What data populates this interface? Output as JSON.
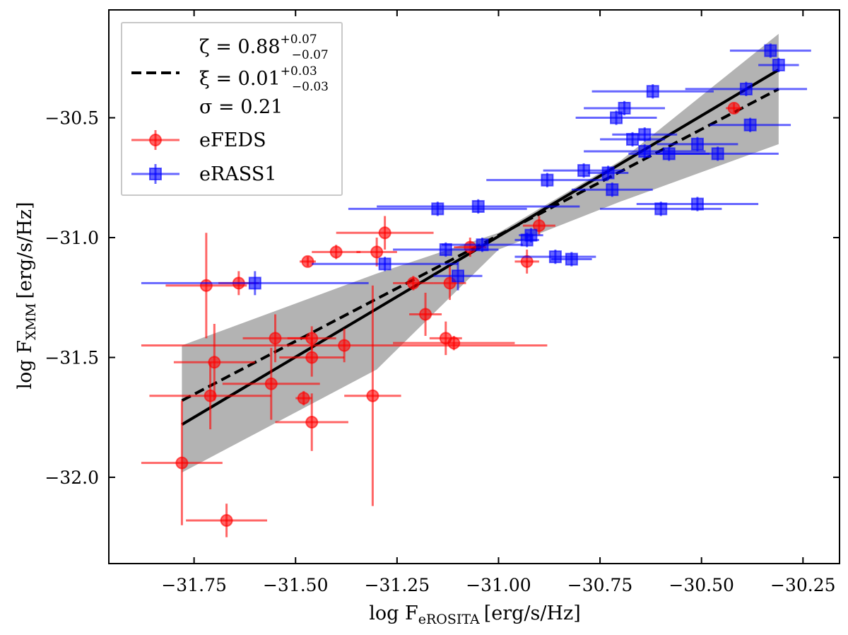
{
  "chart_data": {
    "type": "scatter",
    "xlabel": {
      "main": "log F",
      "sub": "eROSITA",
      "unit": "[erg/s/Hz]"
    },
    "ylabel": {
      "main": "log F",
      "sub": "XMM",
      "unit": "[erg/s/Hz]"
    },
    "xlim": [
      -31.96,
      -30.16
    ],
    "ylim": [
      -32.36,
      -30.05
    ],
    "xticks": [
      -31.75,
      -31.5,
      -31.25,
      -31.0,
      -30.75,
      -30.5,
      -30.25
    ],
    "yticks": [
      -32.0,
      -31.5,
      -31.0,
      -30.5
    ],
    "xtick_labels": [
      "−31.75",
      "−31.50",
      "−31.25",
      "−31.00",
      "−30.75",
      "−30.50",
      "−30.25"
    ],
    "ytick_labels": [
      "−32.0",
      "−31.5",
      "−31.0",
      "−30.5"
    ],
    "legend": {
      "placement": "top-left",
      "fit_label": {
        "zeta": "ζ = 0.88",
        "zeta_err": [
          "+0.07",
          "−0.07"
        ],
        "xi": "ξ = 0.01",
        "xi_err": [
          "+0.03",
          "−0.03"
        ],
        "sigma": "σ = 0.21"
      },
      "entries": [
        "eFEDS",
        "eRASS1"
      ]
    },
    "fit": {
      "solid": {
        "x": [
          -31.78,
          -30.31
        ],
        "y": [
          -31.78,
          -30.3
        ]
      },
      "dashed": {
        "x": [
          -31.78,
          -30.31
        ],
        "y": [
          -31.68,
          -30.38
        ]
      },
      "band": {
        "x": [
          -31.78,
          -31.3,
          -31.0,
          -30.7,
          -30.31
        ],
        "upper": [
          -31.45,
          -31.15,
          -30.98,
          -30.68,
          -30.15
        ],
        "lower": [
          -31.98,
          -31.55,
          -31.05,
          -30.85,
          -30.61
        ]
      }
    },
    "series": [
      {
        "name": "eFEDS",
        "color": "#ff0000",
        "points": [
          {
            "x": -31.72,
            "y": -31.2,
            "xerr": 0.1,
            "yerr": 0.22
          },
          {
            "x": -31.64,
            "y": -31.19,
            "xerr": 0.05,
            "yerr": 0.05
          },
          {
            "x": -31.47,
            "y": -31.1,
            "xerr": 0.02,
            "yerr": 0.02
          },
          {
            "x": -31.4,
            "y": -31.06,
            "xerr": 0.06,
            "yerr": 0.03
          },
          {
            "x": -31.3,
            "y": -31.06,
            "xerr": 0.05,
            "yerr": 0.06
          },
          {
            "x": -31.28,
            "y": -30.98,
            "xerr": 0.12,
            "yerr": 0.07
          },
          {
            "x": -31.21,
            "y": -31.19,
            "xerr": 0.05,
            "yerr": 0.03
          },
          {
            "x": -31.07,
            "y": -31.04,
            "xerr": 0.04,
            "yerr": 0.04
          },
          {
            "x": -30.9,
            "y": -30.95,
            "xerr": 0.04,
            "yerr": 0.04
          },
          {
            "x": -30.93,
            "y": -31.1,
            "xerr": 0.03,
            "yerr": 0.05
          },
          {
            "x": -31.18,
            "y": -31.32,
            "xerr": 0.04,
            "yerr": 0.09
          },
          {
            "x": -31.13,
            "y": -31.42,
            "xerr": 0.04,
            "yerr": 0.07
          },
          {
            "x": -31.12,
            "y": -31.19,
            "xerr": 0.04,
            "yerr": 0.07
          },
          {
            "x": -31.11,
            "y": -31.44,
            "xerr": 0.15,
            "yerr": 0.03
          },
          {
            "x": -31.55,
            "y": -31.42,
            "xerr": 0.08,
            "yerr": 0.1
          },
          {
            "x": -31.46,
            "y": -31.42,
            "xerr": 0.06,
            "yerr": 0.05
          },
          {
            "x": -31.46,
            "y": -31.5,
            "xerr": 0.08,
            "yerr": 0.08
          },
          {
            "x": -31.38,
            "y": -31.45,
            "xerr": 0.5,
            "yerr": 0.07
          },
          {
            "x": -31.7,
            "y": -31.52,
            "xerr": 0.1,
            "yerr": 0.16
          },
          {
            "x": -31.71,
            "y": -31.66,
            "xerr": 0.15,
            "yerr": 0.14
          },
          {
            "x": -31.56,
            "y": -31.61,
            "xerr": 0.12,
            "yerr": 0.15
          },
          {
            "x": -31.48,
            "y": -31.67,
            "xerr": 0.02,
            "yerr": 0.03
          },
          {
            "x": -31.31,
            "y": -31.66,
            "xerr": 0.07,
            "yerr": 0.46
          },
          {
            "x": -31.46,
            "y": -31.77,
            "xerr": 0.09,
            "yerr": 0.12
          },
          {
            "x": -31.78,
            "y": -31.94,
            "xerr": 0.1,
            "yerr": 0.26
          },
          {
            "x": -31.67,
            "y": -32.18,
            "xerr": 0.1,
            "yerr": 0.07
          },
          {
            "x": -30.42,
            "y": -30.46,
            "xerr": 0.02,
            "yerr": 0.02
          }
        ]
      },
      {
        "name": "eRASS1",
        "color": "#0000ff",
        "points": [
          {
            "x": -31.6,
            "y": -31.19,
            "xerr": 0.28,
            "yerr": 0.05
          },
          {
            "x": -31.28,
            "y": -31.11,
            "xerr": 0.18,
            "yerr": 0.03
          },
          {
            "x": -31.15,
            "y": -30.88,
            "xerr": 0.22,
            "yerr": 0.03
          },
          {
            "x": -31.05,
            "y": -30.87,
            "xerr": 0.25,
            "yerr": 0.03
          },
          {
            "x": -31.13,
            "y": -31.05,
            "xerr": 0.13,
            "yerr": 0.03
          },
          {
            "x": -31.04,
            "y": -31.03,
            "xerr": 0.1,
            "yerr": 0.03
          },
          {
            "x": -31.1,
            "y": -31.16,
            "xerr": 0.06,
            "yerr": 0.06
          },
          {
            "x": -30.93,
            "y": -31.01,
            "xerr": 0.03,
            "yerr": 0.03
          },
          {
            "x": -30.92,
            "y": -30.99,
            "xerr": 0.03,
            "yerr": 0.03
          },
          {
            "x": -30.86,
            "y": -31.08,
            "xerr": 0.1,
            "yerr": 0.03
          },
          {
            "x": -30.82,
            "y": -31.09,
            "xerr": 0.05,
            "yerr": 0.03
          },
          {
            "x": -30.88,
            "y": -30.76,
            "xerr": 0.15,
            "yerr": 0.03
          },
          {
            "x": -30.79,
            "y": -30.72,
            "xerr": 0.1,
            "yerr": 0.03
          },
          {
            "x": -30.73,
            "y": -30.73,
            "xerr": 0.05,
            "yerr": 0.03
          },
          {
            "x": -30.72,
            "y": -30.8,
            "xerr": 0.1,
            "yerr": 0.03
          },
          {
            "x": -30.6,
            "y": -30.88,
            "xerr": 0.15,
            "yerr": 0.03
          },
          {
            "x": -30.51,
            "y": -30.86,
            "xerr": 0.15,
            "yerr": 0.03
          },
          {
            "x": -30.71,
            "y": -30.5,
            "xerr": 0.1,
            "yerr": 0.03
          },
          {
            "x": -30.69,
            "y": -30.46,
            "xerr": 0.1,
            "yerr": 0.03
          },
          {
            "x": -30.62,
            "y": -30.39,
            "xerr": 0.15,
            "yerr": 0.03
          },
          {
            "x": -30.67,
            "y": -30.59,
            "xerr": 0.08,
            "yerr": 0.03
          },
          {
            "x": -30.64,
            "y": -30.57,
            "xerr": 0.08,
            "yerr": 0.03
          },
          {
            "x": -30.64,
            "y": -30.64,
            "xerr": 0.15,
            "yerr": 0.03
          },
          {
            "x": -30.58,
            "y": -30.65,
            "xerr": 0.1,
            "yerr": 0.03
          },
          {
            "x": -30.51,
            "y": -30.61,
            "xerr": 0.1,
            "yerr": 0.03
          },
          {
            "x": -30.46,
            "y": -30.65,
            "xerr": 0.15,
            "yerr": 0.03
          },
          {
            "x": -30.38,
            "y": -30.53,
            "xerr": 0.1,
            "yerr": 0.03
          },
          {
            "x": -30.39,
            "y": -30.38,
            "xerr": 0.15,
            "yerr": 0.03
          },
          {
            "x": -30.33,
            "y": -30.22,
            "xerr": 0.1,
            "yerr": 0.03
          },
          {
            "x": -30.31,
            "y": -30.28,
            "xerr": 0.05,
            "yerr": 0.03
          }
        ]
      }
    ]
  }
}
